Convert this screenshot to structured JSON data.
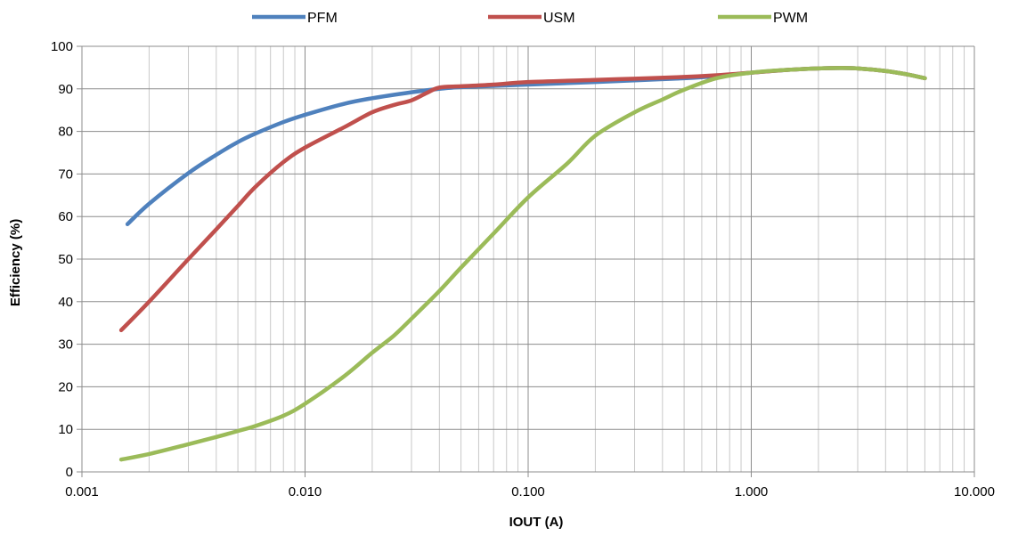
{
  "chart_data": {
    "type": "line",
    "title": "",
    "xlabel": "IOUT (A)",
    "ylabel": "Efficiency (%)",
    "x_scale": "log",
    "xlim": [
      0.001,
      10
    ],
    "ylim": [
      0,
      100
    ],
    "x_ticks": [
      0.001,
      0.01,
      0.1,
      1,
      10
    ],
    "x_tick_labels": [
      "0.001",
      "0.010",
      "0.100",
      "1.000",
      "10.000"
    ],
    "y_ticks": [
      0,
      10,
      20,
      30,
      40,
      50,
      60,
      70,
      80,
      90,
      100
    ],
    "y_tick_labels": [
      "0",
      "10",
      "20",
      "30",
      "40",
      "50",
      "60",
      "70",
      "80",
      "90",
      "100"
    ],
    "grid": true,
    "legend_position": "top",
    "series": [
      {
        "name": "PFM",
        "color": "#4f81bd",
        "points": [
          [
            0.0016,
            58.2
          ],
          [
            0.002,
            63
          ],
          [
            0.003,
            70.2
          ],
          [
            0.004,
            74.5
          ],
          [
            0.005,
            77.5
          ],
          [
            0.006,
            79.5
          ],
          [
            0.008,
            82.2
          ],
          [
            0.01,
            83.9
          ],
          [
            0.015,
            86.5
          ],
          [
            0.02,
            87.8
          ],
          [
            0.03,
            89.2
          ],
          [
            0.04,
            90
          ],
          [
            0.05,
            90.4
          ],
          [
            0.1,
            91
          ],
          [
            0.2,
            91.6
          ],
          [
            0.3,
            92
          ],
          [
            0.5,
            92.5
          ],
          [
            0.7,
            93
          ],
          [
            1.0,
            93.8
          ],
          [
            1.5,
            94.5
          ],
          [
            2.0,
            94.8
          ],
          [
            2.5,
            94.9
          ],
          [
            3.0,
            94.8
          ],
          [
            4.0,
            94.2
          ],
          [
            5.0,
            93.4
          ],
          [
            6.0,
            92.5
          ]
        ]
      },
      {
        "name": "USM",
        "color": "#c0504d",
        "points": [
          [
            0.0015,
            33.3
          ],
          [
            0.002,
            40
          ],
          [
            0.003,
            50
          ],
          [
            0.004,
            57
          ],
          [
            0.005,
            62.5
          ],
          [
            0.006,
            67
          ],
          [
            0.008,
            72.8
          ],
          [
            0.01,
            76.2
          ],
          [
            0.015,
            81
          ],
          [
            0.02,
            84.5
          ],
          [
            0.025,
            86.2
          ],
          [
            0.03,
            87.3
          ],
          [
            0.035,
            89
          ],
          [
            0.04,
            90.3
          ],
          [
            0.05,
            90.6
          ],
          [
            0.07,
            91
          ],
          [
            0.1,
            91.6
          ],
          [
            0.2,
            92.1
          ],
          [
            0.3,
            92.4
          ],
          [
            0.5,
            92.8
          ],
          [
            0.7,
            93.2
          ],
          [
            1.0,
            93.8
          ],
          [
            1.5,
            94.5
          ],
          [
            2.0,
            94.8
          ],
          [
            2.5,
            94.9
          ],
          [
            3.0,
            94.8
          ],
          [
            4.0,
            94.2
          ],
          [
            5.0,
            93.4
          ],
          [
            6.0,
            92.5
          ]
        ]
      },
      {
        "name": "PWM",
        "color": "#9bbb59",
        "points": [
          [
            0.0015,
            2.9
          ],
          [
            0.002,
            4.2
          ],
          [
            0.003,
            6.5
          ],
          [
            0.004,
            8.2
          ],
          [
            0.005,
            9.6
          ],
          [
            0.006,
            10.8
          ],
          [
            0.008,
            13.2
          ],
          [
            0.01,
            16
          ],
          [
            0.015,
            22.5
          ],
          [
            0.02,
            28
          ],
          [
            0.025,
            32
          ],
          [
            0.03,
            36
          ],
          [
            0.04,
            42.5
          ],
          [
            0.05,
            48
          ],
          [
            0.07,
            56
          ],
          [
            0.1,
            64.5
          ],
          [
            0.15,
            72.5
          ],
          [
            0.2,
            79
          ],
          [
            0.3,
            84.5
          ],
          [
            0.4,
            87.5
          ],
          [
            0.5,
            89.8
          ],
          [
            0.7,
            92.5
          ],
          [
            1.0,
            93.8
          ],
          [
            1.5,
            94.5
          ],
          [
            2.0,
            94.8
          ],
          [
            2.5,
            94.9
          ],
          [
            3.0,
            94.8
          ],
          [
            4.0,
            94.2
          ],
          [
            5.0,
            93.4
          ],
          [
            6.0,
            92.5
          ]
        ]
      }
    ]
  }
}
